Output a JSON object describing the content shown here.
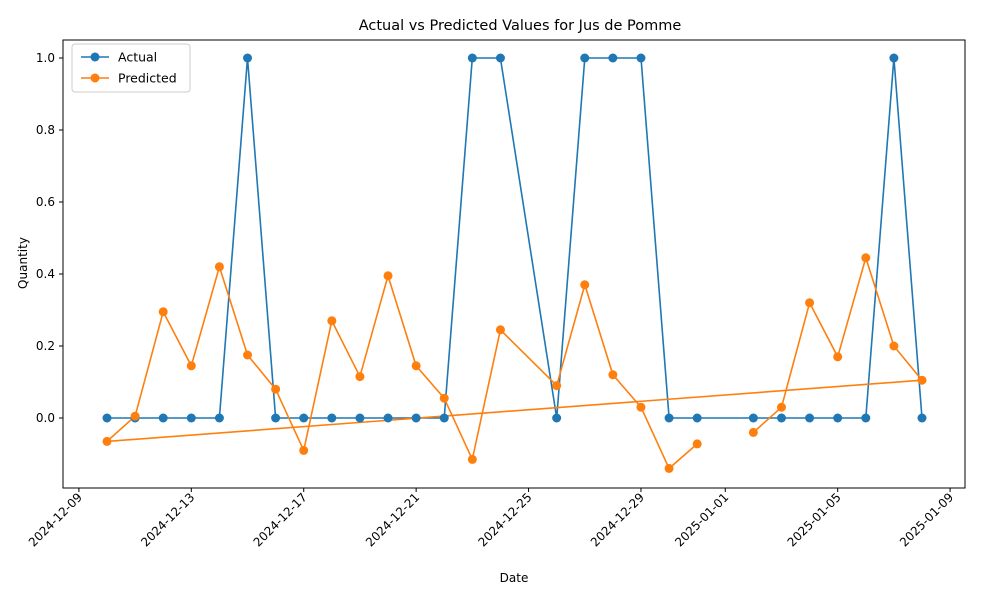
{
  "chart_data": {
    "type": "line",
    "title": "Actual vs Predicted Values for Jus de Pomme",
    "xlabel": "Date",
    "ylabel": "Quantity",
    "x_ticks": [
      "2024-12-09",
      "2024-12-13",
      "2024-12-17",
      "2024-12-21",
      "2024-12-25",
      "2024-12-29",
      "2025-01-01",
      "2025-01-05",
      "2025-01-09"
    ],
    "y_ticks": [
      "0.0",
      "0.2",
      "0.4",
      "0.6",
      "0.8",
      "1.0"
    ],
    "xlim": [
      "2024-12-09",
      "2025-01-09"
    ],
    "ylim": [
      -0.2,
      1.05
    ],
    "legend_position": "top-left",
    "series": [
      {
        "name": "Actual",
        "color": "#1f77b4",
        "marker": "circle",
        "points": [
          [
            "2024-12-10",
            0
          ],
          [
            "2024-12-11",
            0
          ],
          [
            "2024-12-12",
            0
          ],
          [
            "2024-12-13",
            0
          ],
          [
            "2024-12-14",
            0
          ],
          [
            "2024-12-15",
            1
          ],
          [
            "2024-12-16",
            0
          ],
          [
            "2024-12-17",
            0
          ],
          [
            "2024-12-18",
            0
          ],
          [
            "2024-12-19",
            0
          ],
          [
            "2024-12-20",
            0
          ],
          [
            "2024-12-21",
            0
          ],
          [
            "2024-12-22",
            0
          ],
          [
            "2024-12-23",
            1
          ],
          [
            "2024-12-24",
            1
          ],
          [
            "2024-12-26",
            0
          ],
          [
            "2024-12-27",
            1
          ],
          [
            "2024-12-28",
            1
          ],
          [
            "2024-12-29",
            1
          ],
          [
            "2024-12-30",
            0
          ],
          [
            "2024-12-31",
            0
          ],
          [
            "2025-01-02",
            0
          ],
          [
            "2025-01-03",
            0
          ],
          [
            "2025-01-04",
            0
          ],
          [
            "2025-01-05",
            0
          ],
          [
            "2025-01-06",
            0
          ],
          [
            "2025-01-07",
            1
          ],
          [
            "2025-01-08",
            0
          ]
        ]
      },
      {
        "name": "Predicted",
        "color": "#ff7f0e",
        "marker": "circle",
        "segments": [
          [
            [
              "2024-12-10",
              -0.065
            ],
            [
              "2024-12-11",
              0.005
            ],
            [
              "2024-12-12",
              0.295
            ],
            [
              "2024-12-13",
              0.145
            ],
            [
              "2024-12-14",
              0.42
            ],
            [
              "2024-12-15",
              0.175
            ],
            [
              "2024-12-16",
              0.08
            ],
            [
              "2024-12-17",
              -0.09
            ],
            [
              "2024-12-18",
              0.27
            ],
            [
              "2024-12-19",
              0.115
            ],
            [
              "2024-12-20",
              0.395
            ],
            [
              "2024-12-21",
              0.145
            ],
            [
              "2024-12-22",
              0.055
            ],
            [
              "2024-12-23",
              -0.115
            ],
            [
              "2024-12-24",
              0.245
            ],
            [
              "2024-12-26",
              0.09
            ],
            [
              "2024-12-27",
              0.37
            ],
            [
              "2024-12-28",
              0.12
            ],
            [
              "2024-12-29",
              0.03
            ],
            [
              "2024-12-30",
              -0.14
            ],
            [
              "2024-12-31",
              -0.072
            ]
          ],
          [
            [
              "2025-01-02",
              -0.04
            ],
            [
              "2025-01-03",
              0.03
            ],
            [
              "2025-01-04",
              0.32
            ],
            [
              "2025-01-05",
              0.17
            ],
            [
              "2025-01-06",
              0.445
            ],
            [
              "2025-01-07",
              0.2
            ],
            [
              "2025-01-08",
              0.105
            ]
          ]
        ],
        "extra_line": [
          [
            "2024-12-10",
            -0.065
          ],
          [
            "2025-01-08",
            0.105
          ]
        ]
      }
    ]
  }
}
